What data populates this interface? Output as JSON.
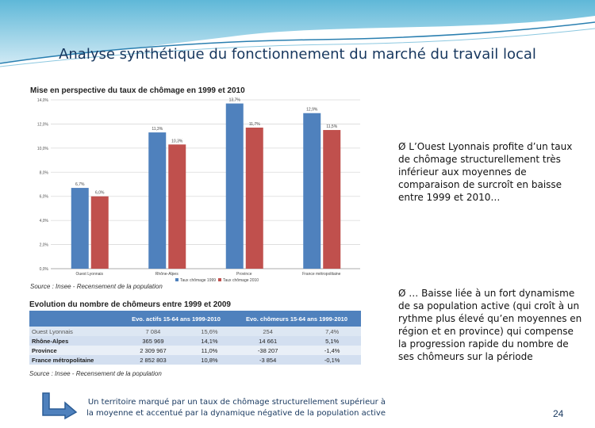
{
  "slide": {
    "title": "Analyse synthétique du fonctionnement du marché du travail local",
    "page_number": "24",
    "bullets": [
      "L’Ouest Lyonnais profite d’un taux de chômage structurellement très inférieur aux moyennes de comparaison de surcroît en baisse entre 1999 et 2010…",
      "… Baisse liée à un fort dynamisme de sa population active (qui croît à un rythme plus élevé qu’en moyennes en région et en province) qui compense la progression rapide du nombre de ses chômeurs sur la période"
    ],
    "bottom_note": "Un territoire marqué par un taux de chômage structurellement supérieur à la moyenne et accentué par la dynamique négative de la population active",
    "bullet_marker": "Ø"
  },
  "chart_data": {
    "type": "bar",
    "title": "Mise en perspective du taux de chômage en 1999 et 2010",
    "categories": [
      "Ouest Lyonnais",
      "Rhône-Alpes",
      "Province",
      "France métropolitaine"
    ],
    "series": [
      {
        "name": "Taux chômage 1999",
        "values": [
          6.7,
          11.3,
          13.7,
          12.9
        ],
        "labels": [
          "6,7%",
          "11,3%",
          "13,7%",
          "12,9%"
        ],
        "color": "#4f81bd"
      },
      {
        "name": "Taux chômage 2010",
        "values": [
          6.0,
          10.3,
          11.7,
          11.5
        ],
        "labels": [
          "6,0%",
          "10,3%",
          "11,7%",
          "11,5%"
        ],
        "color": "#c0504d"
      }
    ],
    "yticks": [
      "0,0%",
      "2,0%",
      "4,0%",
      "6,0%",
      "8,0%",
      "10,0%",
      "12,0%",
      "14,0%"
    ],
    "ylim": [
      0,
      14
    ],
    "grid": true,
    "legend": "bottom",
    "source": "Source : Insee - Recensement de la population"
  },
  "table": {
    "title": "Evolution du nombre de chômeurs entre 1999 et 2009",
    "headers": [
      "",
      "Evo. actifs 15-64 ans 1999-2010",
      "",
      "Evo. chômeurs 15-64 ans 1999-2010",
      ""
    ],
    "rows": [
      [
        "Ouest Lyonnais",
        "7 084",
        "15,6%",
        "254",
        "7,4%"
      ],
      [
        "Rhône-Alpes",
        "365 969",
        "14,1%",
        "14 661",
        "5,1%"
      ],
      [
        "Province",
        "2 309 967",
        "11,0%",
        "-38 207",
        "-1,4%"
      ],
      [
        "France métropolitaine",
        "2 852 803",
        "10,8%",
        "-3 854",
        "-0,1%"
      ]
    ],
    "source": "Source : Insee - Recensement de la population"
  }
}
